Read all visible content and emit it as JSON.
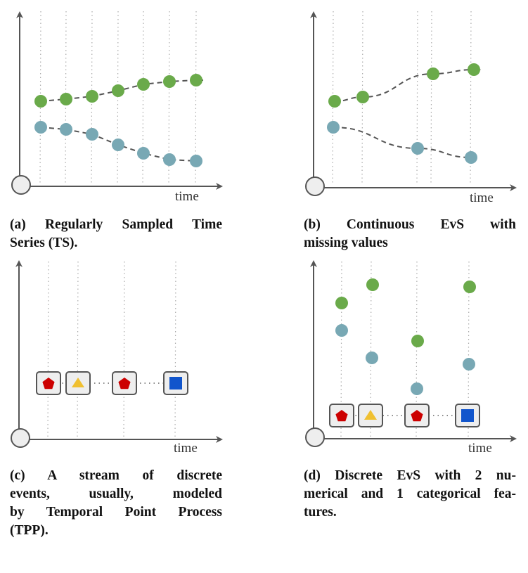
{
  "axis_label": "time",
  "colors": {
    "green": "#6aaa4a",
    "teal": "#78a8b4",
    "axis": "#555555",
    "pentagon": "#cc0000",
    "triangle": "#f0c030",
    "square": "#1155cc",
    "box_fill": "#eeeeee"
  },
  "panels": [
    {
      "id": "a",
      "caption": [
        "(a) Regularly Sampled Time",
        "Series (TS)."
      ]
    },
    {
      "id": "b",
      "caption": [
        "(b) Continuous EvS with",
        "missing values"
      ]
    },
    {
      "id": "c",
      "caption": [
        "(c) A stream of discrete",
        "events, usually, modeled",
        "by Temporal Point Process",
        "(TPP)."
      ]
    },
    {
      "id": "d",
      "caption": [
        "(d) Discrete EvS with 2 nu-",
        "merical and 1 categorical fea-",
        "tures."
      ]
    }
  ],
  "event_types": [
    "pentagon",
    "triangle",
    "pentagon",
    "square"
  ]
}
